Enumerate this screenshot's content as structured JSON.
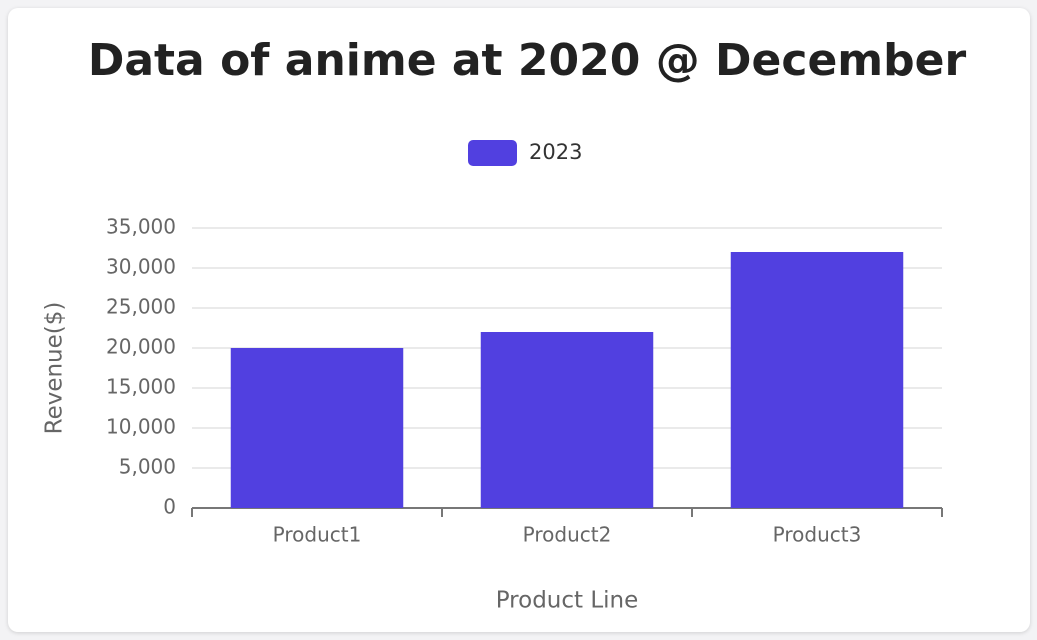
{
  "chart_data": {
    "type": "bar",
    "title": "Data of anime at 2020 @ December",
    "x_label": "Product Line",
    "y_label": "Revenue($)",
    "categories": [
      "Product1",
      "Product2",
      "Product3"
    ],
    "series": [
      {
        "name": "2023",
        "color": "#5140e0",
        "values": [
          20000,
          22000,
          32000
        ]
      }
    ],
    "ylim": [
      0,
      35000
    ],
    "yticks": [
      0,
      {
        "value": 5000,
        "label": "5,000"
      },
      {
        "value": 10000,
        "label": "10,000"
      },
      {
        "value": 15000,
        "label": "15,000"
      },
      {
        "value": 20000,
        "label": "20,000"
      },
      {
        "value": 25000,
        "label": "25,000"
      },
      {
        "value": 30000,
        "label": "30,000"
      },
      {
        "value": 35000,
        "label": "35,000"
      }
    ],
    "grid": true,
    "legend": "top"
  }
}
